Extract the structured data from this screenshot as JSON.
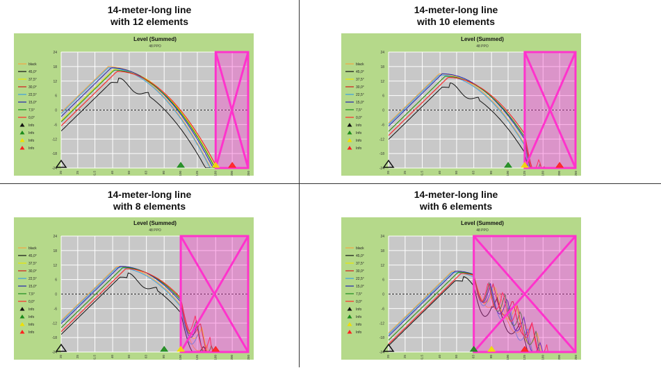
{
  "chart_data": [
    {
      "type": "line",
      "title_line1": "14-meter-long line",
      "title_line2": "with 12 elements",
      "inner_title": "Level (Summed)",
      "inner_subtitle": "48 PPO",
      "yticks": [
        "24",
        "18",
        "12",
        "6",
        "0",
        "-6",
        "-12",
        "-18",
        "-24"
      ],
      "xticks": [
        "20",
        "25",
        "31.5",
        "40",
        "50",
        "63",
        "80",
        "100",
        "125",
        "160",
        "200",
        "250"
      ],
      "legend": [
        "black",
        "45,0°",
        "37,5°",
        "30,0°",
        "22,5°",
        "15,0°",
        "7,5°",
        "0,0°",
        "Info",
        "Info",
        "Info",
        "Info"
      ],
      "series_colors": [
        "#f4a640",
        "#111111",
        "#e8e800",
        "#d11a1a",
        "#3aa0e0",
        "#2020b0",
        "#1a8a1a",
        "#ff2a2a"
      ],
      "marker_colors": [
        "#111111",
        "#1a8a1a",
        "#f0e000",
        "#ff2020"
      ],
      "xlim": [
        20,
        250
      ],
      "ylim": [
        -24,
        24
      ],
      "peaks": [
        18,
        11.5,
        17,
        16,
        17.5,
        17.5,
        16.5,
        16
      ],
      "peak_x": 40,
      "markers_x": [
        20,
        100,
        160,
        200
      ],
      "shade_from": 160
    },
    {
      "type": "line",
      "title_line1": "14-meter-long line",
      "title_line2": "with 10 elements",
      "inner_title": "Level (Summed)",
      "inner_subtitle": "48 PPO",
      "yticks": [
        "24",
        "18",
        "12",
        "6",
        "0",
        "-6",
        "-12",
        "-18",
        "-24"
      ],
      "xticks": [
        "20",
        "25",
        "31.5",
        "40",
        "50",
        "63",
        "80",
        "100",
        "125",
        "160",
        "200",
        "250"
      ],
      "legend": [
        "black",
        "45,0°",
        "37,5°",
        "30,0°",
        "22,5°",
        "15,0°",
        "7,5°",
        "0,0°",
        "Info",
        "Info",
        "Info",
        "Info"
      ],
      "series_colors": [
        "#f4a640",
        "#111111",
        "#e8e800",
        "#d11a1a",
        "#3aa0e0",
        "#2020b0",
        "#1a8a1a",
        "#ff2a2a"
      ],
      "marker_colors": [
        "#111111",
        "#1a8a1a",
        "#f0e000",
        "#ff2020"
      ],
      "xlim": [
        20,
        250
      ],
      "ylim": [
        -24,
        24
      ],
      "peaks": [
        15,
        9.5,
        14,
        13.5,
        14.5,
        15,
        14,
        13.5
      ],
      "peak_x": 42,
      "markers_x": [
        20,
        100,
        125,
        200
      ],
      "shade_from": 125
    },
    {
      "type": "line",
      "title_line1": "14-meter-long line",
      "title_line2": "with 8 elements",
      "inner_title": "Level (Summed)",
      "inner_subtitle": "48 PPO",
      "yticks": [
        "24",
        "18",
        "12",
        "6",
        "0",
        "-6",
        "-12",
        "-18",
        "-24"
      ],
      "xticks": [
        "20",
        "25",
        "31.5",
        "40",
        "50",
        "63",
        "80",
        "100",
        "125",
        "160",
        "200",
        "250"
      ],
      "legend": [
        "black",
        "45,0°",
        "37,5°",
        "30,0°",
        "22,5°",
        "15,0°",
        "7,5°",
        "0,0°",
        "Info",
        "Info",
        "Info",
        "Info"
      ],
      "series_colors": [
        "#f4a640",
        "#111111",
        "#e8e800",
        "#d11a1a",
        "#3aa0e0",
        "#2020b0",
        "#1a8a1a",
        "#ff2a2a"
      ],
      "marker_colors": [
        "#111111",
        "#1a8a1a",
        "#f0e000",
        "#ff2020"
      ],
      "xlim": [
        20,
        250
      ],
      "ylim": [
        -24,
        24
      ],
      "peaks": [
        11.5,
        7,
        11,
        10.5,
        11,
        11.5,
        11,
        10.5
      ],
      "peak_x": 45,
      "markers_x": [
        20,
        80,
        100,
        160
      ],
      "shade_from": 100
    },
    {
      "type": "line",
      "title_line1": "14-meter-long line",
      "title_line2": "with 6 elements",
      "inner_title": "Level (Summed)",
      "inner_subtitle": "48 PPO",
      "yticks": [
        "24",
        "18",
        "12",
        "6",
        "0",
        "-6",
        "-12",
        "-18",
        "-24"
      ],
      "xticks": [
        "20",
        "25",
        "31.5",
        "40",
        "50",
        "63",
        "80",
        "100",
        "125",
        "160",
        "200",
        "250"
      ],
      "legend": [
        "black",
        "45,0°",
        "37,5°",
        "30,0°",
        "22,5°",
        "15,0°",
        "7,5°",
        "0,0°",
        "Info",
        "Info",
        "Info",
        "Info"
      ],
      "series_colors": [
        "#f4a640",
        "#111111",
        "#e8e800",
        "#d11a1a",
        "#3aa0e0",
        "#2020b0",
        "#1a8a1a",
        "#ff2a2a"
      ],
      "marker_colors": [
        "#111111",
        "#1a8a1a",
        "#f0e000",
        "#ff2020"
      ],
      "xlim": [
        20,
        250
      ],
      "ylim": [
        -24,
        24
      ],
      "peaks": [
        9.5,
        5.5,
        9,
        8.5,
        9,
        9.5,
        9,
        8.5
      ],
      "peak_x": 50,
      "markers_x": [
        20,
        63,
        80,
        125
      ],
      "shade_from": 63
    }
  ],
  "colors": {
    "panel_bg": "#b5d98a",
    "plot_bg": "#c8c8c8",
    "grid": "#ffffff",
    "overlay": "#ff33cc"
  }
}
